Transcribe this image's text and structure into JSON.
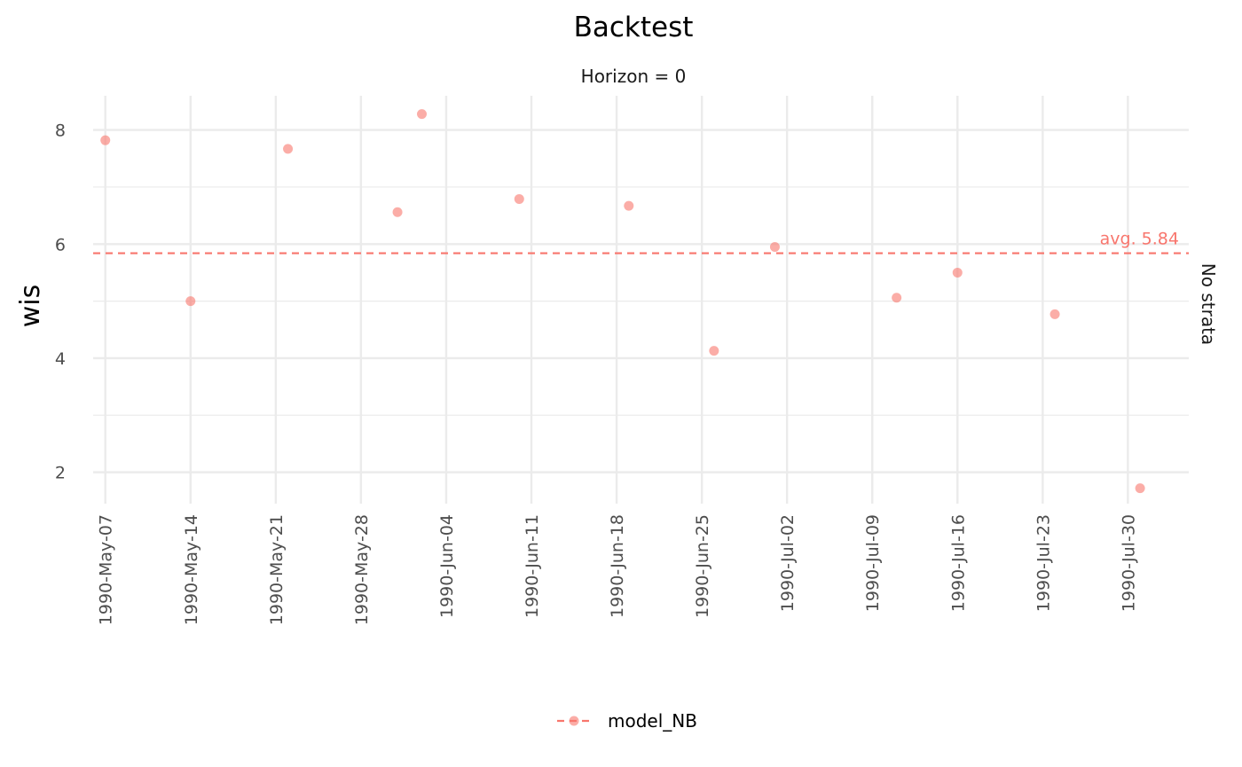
{
  "chart_data": {
    "type": "scatter",
    "title": "Backtest",
    "subtitle": "Horizon = 0",
    "xlabel": "",
    "ylabel": "wis",
    "strip_label": "No strata",
    "y_ticks": [
      2,
      4,
      6,
      8
    ],
    "ylim": [
      1.45,
      8.6
    ],
    "x_ticks": [
      "1990-May-07",
      "1990-May-14",
      "1990-May-21",
      "1990-May-28",
      "1990-Jun-04",
      "1990-Jun-11",
      "1990-Jun-18",
      "1990-Jun-25",
      "1990-Jul-02",
      "1990-Jul-09",
      "1990-Jul-16",
      "1990-Jul-23",
      "1990-Jul-30"
    ],
    "xlim": [
      "1990-May-06",
      "1990-Aug-04"
    ],
    "grid": true,
    "legend_position": "bottom",
    "series": [
      {
        "name": "model_NB",
        "color": "#F8766D",
        "points": [
          {
            "x": "1990-May-07",
            "y": 7.82
          },
          {
            "x": "1990-May-14",
            "y": 5.0
          },
          {
            "x": "1990-May-22",
            "y": 7.67
          },
          {
            "x": "1990-May-31",
            "y": 6.56
          },
          {
            "x": "1990-Jun-02",
            "y": 8.28
          },
          {
            "x": "1990-Jun-10",
            "y": 6.79
          },
          {
            "x": "1990-Jun-19",
            "y": 6.67
          },
          {
            "x": "1990-Jun-26",
            "y": 4.13
          },
          {
            "x": "1990-Jul-01",
            "y": 5.95
          },
          {
            "x": "1990-Jul-11",
            "y": 5.06
          },
          {
            "x": "1990-Jul-16",
            "y": 5.5
          },
          {
            "x": "1990-Jul-24",
            "y": 4.77
          },
          {
            "x": "1990-Jul-31",
            "y": 1.72
          }
        ],
        "average": 5.84,
        "average_label": "avg. 5.84"
      }
    ]
  }
}
